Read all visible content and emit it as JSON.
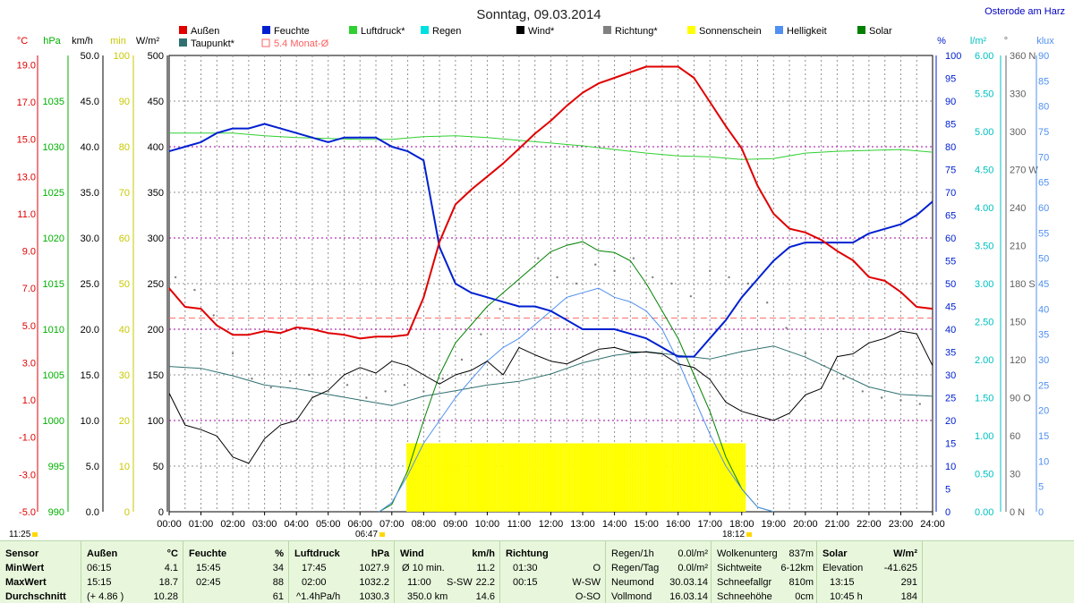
{
  "header": {
    "title": "Sonntag, 09.03.2014",
    "location": "Osterode am Harz"
  },
  "legend": [
    {
      "label": "Außen",
      "color": "#e00000"
    },
    {
      "label": "Feuchte",
      "color": "#0020d0"
    },
    {
      "label": "Luftdruck*",
      "color": "#30d030"
    },
    {
      "label": "Regen",
      "color": "#00e0e0"
    },
    {
      "label": "Wind*",
      "color": "#000000"
    },
    {
      "label": "Richtung*",
      "color": "#808080"
    },
    {
      "label": "Sonnenschein",
      "color": "#ffff00"
    },
    {
      "label": "Helligkeit",
      "color": "#5090f0"
    },
    {
      "label": "Solar",
      "color": "#008000"
    },
    {
      "label": "Taupunkt*",
      "color": "#307070"
    },
    {
      "label": "5.4 Monat-Ø",
      "color": "#ff6060"
    }
  ],
  "axes": {
    "temp": {
      "unit": "°C",
      "ticks": [
        "19.0",
        "17.0",
        "15.0",
        "13.0",
        "11.0",
        "9.0",
        "7.0",
        "5.0",
        "3.0",
        "1.0",
        "-1.0",
        "-3.0",
        "-5.0"
      ],
      "color": "#e00000"
    },
    "pressure": {
      "unit": "hPa",
      "ticks": [
        "1035",
        "1030",
        "1025",
        "1020",
        "1015",
        "1010",
        "1005",
        "1000",
        "995",
        "990"
      ],
      "color": "#00b000"
    },
    "wind": {
      "unit": "km/h",
      "ticks": [
        "50.0",
        "45.0",
        "40.0",
        "35.0",
        "30.0",
        "25.0",
        "20.0",
        "15.0",
        "10.0",
        "5.0",
        "0.0"
      ],
      "color": "#000000"
    },
    "sun_min": {
      "unit": "min",
      "ticks": [
        "100",
        "90",
        "80",
        "70",
        "60",
        "50",
        "40",
        "30",
        "20",
        "10",
        "0"
      ],
      "color": "#c8c800"
    },
    "solar": {
      "unit": "W/m²",
      "ticks": [
        "500",
        "450",
        "400",
        "350",
        "300",
        "250",
        "200",
        "150",
        "100",
        "50",
        "0"
      ],
      "color": "#000000"
    },
    "humidity": {
      "unit": "%",
      "ticks": [
        "100",
        "95",
        "90",
        "85",
        "80",
        "75",
        "70",
        "65",
        "60",
        "55",
        "50",
        "45",
        "40",
        "35",
        "30",
        "25",
        "20",
        "15",
        "10",
        "5",
        "0"
      ],
      "color": "#0020d0"
    },
    "rain": {
      "unit": "l/m²",
      "ticks": [
        "6.00",
        "5.50",
        "5.00",
        "4.50",
        "4.00",
        "3.50",
        "3.00",
        "2.50",
        "2.00",
        "1.50",
        "1.00",
        "0.50",
        "0.00"
      ],
      "color": "#00c0c0"
    },
    "direction": {
      "unit": "°",
      "ticks": [
        "360 N",
        "330",
        "300",
        "270 W",
        "240",
        "210",
        "180 S",
        "150",
        "120",
        "90 O",
        "60",
        "30",
        "0 N"
      ],
      "color": "#606060"
    },
    "lux": {
      "unit": "klux",
      "ticks": [
        "90",
        "85",
        "80",
        "75",
        "70",
        "65",
        "60",
        "55",
        "50",
        "45",
        "40",
        "35",
        "30",
        "25",
        "20",
        "15",
        "10",
        "5",
        "0"
      ],
      "color": "#5090f0"
    },
    "time_ticks": [
      "00:00",
      "01:00",
      "02:00",
      "03:00",
      "04:00",
      "05:00",
      "06:00",
      "07:00",
      "08:00",
      "09:00",
      "10:00",
      "11:00",
      "12:00",
      "13:00",
      "14:00",
      "15:00",
      "16:00",
      "17:00",
      "18:00",
      "19:00",
      "20:00",
      "21:00",
      "22:00",
      "23:00",
      "24:00"
    ]
  },
  "sun_marks": {
    "left": "11:25",
    "sunrise": "06:47",
    "sunset": "18:12"
  },
  "chart_data": {
    "type": "line",
    "title": "Sonntag, 09.03.2014",
    "x_unit": "hours",
    "xlim": [
      0,
      24
    ],
    "monthly_avg_temp": 5.4,
    "series": [
      {
        "name": "Außen",
        "unit": "°C",
        "color": "#e00000",
        "x": [
          0,
          0.5,
          1,
          1.5,
          2,
          2.5,
          3,
          3.5,
          4,
          4.5,
          5,
          5.5,
          6,
          6.5,
          7,
          7.5,
          8,
          8.5,
          9,
          9.5,
          10,
          10.5,
          11,
          11.5,
          12,
          12.5,
          13,
          13.5,
          14,
          14.5,
          15,
          15.5,
          16,
          16.5,
          17,
          17.5,
          18,
          18.5,
          19,
          19.5,
          20,
          20.5,
          21,
          21.5,
          22,
          22.5,
          23,
          23.5,
          24
        ],
        "y": [
          7.0,
          6.0,
          5.9,
          5.0,
          4.5,
          4.5,
          4.7,
          4.6,
          4.9,
          4.8,
          4.6,
          4.5,
          4.3,
          4.4,
          4.4,
          4.5,
          6.5,
          9.5,
          11.5,
          12.3,
          13.0,
          13.7,
          14.5,
          15.3,
          16.0,
          16.8,
          17.5,
          18.0,
          18.3,
          18.6,
          18.9,
          18.9,
          18.9,
          18.3,
          17.0,
          15.7,
          14.5,
          12.5,
          11.0,
          10.2,
          10.0,
          9.6,
          9.0,
          8.5,
          7.6,
          7.4,
          6.8,
          6.0,
          5.9
        ]
      },
      {
        "name": "Feuchte",
        "unit": "%",
        "color": "#0020d0",
        "x": [
          0,
          0.5,
          1,
          1.5,
          2,
          2.5,
          3,
          3.5,
          4,
          4.5,
          5,
          5.5,
          6,
          6.5,
          7,
          7.5,
          8,
          8.5,
          9,
          9.5,
          10,
          10.5,
          11,
          11.5,
          12,
          12.5,
          13,
          13.5,
          14,
          14.5,
          15,
          15.5,
          16,
          16.5,
          17,
          17.5,
          18,
          18.5,
          19,
          19.5,
          20,
          20.5,
          21,
          21.5,
          22,
          22.5,
          23,
          23.5,
          24
        ],
        "y": [
          79,
          80,
          81,
          83,
          84,
          84,
          85,
          84,
          83,
          82,
          81,
          82,
          82,
          82,
          80,
          79,
          77,
          58,
          50,
          48,
          47,
          46,
          45,
          45,
          44,
          42,
          40,
          40,
          40,
          39,
          38,
          36,
          34,
          34,
          38,
          42,
          47,
          51,
          55,
          58,
          59,
          59,
          59,
          59,
          61,
          62,
          63,
          65,
          68
        ]
      },
      {
        "name": "Luftdruck*",
        "unit": "hPa",
        "color": "#30d030",
        "x": [
          0,
          1,
          2,
          3,
          4,
          5,
          6,
          7,
          8,
          9,
          10,
          11,
          12,
          13,
          14,
          15,
          16,
          17,
          18,
          19,
          20,
          21,
          22,
          23,
          24
        ],
        "y": [
          1031.5,
          1031.5,
          1031.5,
          1031.2,
          1031.0,
          1030.9,
          1030.8,
          1030.8,
          1031.1,
          1031.2,
          1031.0,
          1030.7,
          1030.4,
          1030.1,
          1029.7,
          1029.3,
          1029.0,
          1028.9,
          1028.6,
          1028.7,
          1029.3,
          1029.5,
          1029.6,
          1029.7,
          1029.4
        ]
      },
      {
        "name": "Wind*",
        "unit": "km/h",
        "color": "#000000",
        "x": [
          0,
          0.5,
          1,
          1.5,
          2,
          2.5,
          3,
          3.5,
          4,
          4.5,
          5,
          5.5,
          6,
          6.5,
          7,
          7.5,
          8,
          8.5,
          9,
          9.5,
          10,
          10.5,
          11,
          11.5,
          12,
          12.5,
          13,
          13.5,
          14,
          14.5,
          15,
          15.5,
          16,
          16.5,
          17,
          17.5,
          18,
          18.5,
          19,
          19.5,
          20,
          20.5,
          21,
          21.5,
          22,
          22.5,
          23,
          23.5,
          24
        ],
        "y": [
          13.0,
          9.5,
          9.0,
          8.3,
          6.0,
          5.3,
          8.0,
          9.5,
          10.0,
          12.5,
          13.3,
          15.0,
          15.8,
          15.2,
          16.5,
          16.0,
          15.0,
          14.0,
          15.0,
          15.5,
          16.5,
          15.0,
          18.0,
          17.2,
          16.5,
          16.2,
          17.0,
          17.8,
          18.0,
          17.5,
          17.5,
          17.3,
          16.2,
          15.8,
          14.5,
          12.0,
          11.0,
          10.5,
          10.0,
          10.8,
          12.8,
          13.5,
          17.0,
          17.3,
          18.5,
          19.0,
          19.8,
          19.5,
          16.0
        ]
      },
      {
        "name": "Taupunkt*",
        "unit": "°C",
        "color": "#307070",
        "x": [
          0,
          1,
          2,
          3,
          4,
          5,
          6,
          7,
          8,
          9,
          10,
          11,
          12,
          13,
          14,
          15,
          16,
          17,
          18,
          19,
          20,
          21,
          22,
          23,
          24
        ],
        "y": [
          2.8,
          2.7,
          2.3,
          1.8,
          1.6,
          1.3,
          1.0,
          0.7,
          1.2,
          1.5,
          1.8,
          2.0,
          2.4,
          3.0,
          3.4,
          3.6,
          3.4,
          3.2,
          3.6,
          3.9,
          3.3,
          2.5,
          1.7,
          1.3,
          1.2
        ]
      },
      {
        "name": "Richtung*",
        "unit": "°",
        "color": "#808080",
        "x": [
          0.2,
          0.8,
          1.4,
          2.0,
          2.6,
          3.2,
          3.8,
          4.4,
          5.0,
          5.6,
          6.2,
          6.8,
          7.4,
          8.0,
          8.6,
          9.2,
          9.8,
          10.4,
          11.0,
          11.6,
          12.2,
          12.8,
          13.4,
          14.0,
          14.6,
          15.2,
          15.8,
          16.4,
          17.0,
          17.6,
          18.2,
          18.8,
          19.4,
          20.0,
          20.6,
          21.2,
          21.8,
          22.4,
          23.0,
          23.6
        ],
        "y": [
          185,
          175,
          155,
          125,
          105,
          98,
          103,
          108,
          95,
          100,
          90,
          95,
          100,
          95,
          105,
          120,
          140,
          160,
          180,
          200,
          185,
          180,
          195,
          190,
          200,
          185,
          180,
          170,
          190,
          185,
          180,
          165,
          145,
          125,
          115,
          105,
          95,
          90,
          88,
          85
        ]
      },
      {
        "name": "Solar",
        "unit": "W/m²",
        "color": "#008000",
        "x": [
          6.6,
          7,
          7.5,
          8,
          8.5,
          9,
          9.5,
          10,
          10.5,
          11,
          11.5,
          12,
          12.5,
          13,
          13.5,
          14,
          14.5,
          15,
          15.5,
          16,
          16.5,
          17,
          17.5,
          18,
          18.5,
          19
        ],
        "y": [
          0,
          8,
          45,
          100,
          150,
          185,
          205,
          225,
          240,
          255,
          270,
          285,
          292,
          296,
          286,
          284,
          275,
          250,
          220,
          190,
          150,
          110,
          60,
          25,
          5,
          0
        ]
      },
      {
        "name": "Helligkeit",
        "unit": "klux",
        "color": "#5090f0",
        "x": [
          6.6,
          7,
          7.5,
          8,
          8.5,
          9,
          9.5,
          10,
          10.5,
          11,
          11.5,
          12,
          12.5,
          13,
          13.5,
          14,
          14.5,
          15,
          15.5,
          16,
          16.5,
          17,
          17.5,
          18,
          18.5,
          19
        ],
        "y": [
          0,
          2,
          8,
          15,
          20,
          25,
          29,
          33,
          36,
          38,
          41,
          44,
          47,
          48,
          49,
          47,
          46,
          44,
          40,
          33,
          25,
          17,
          10,
          5,
          1,
          0
        ]
      },
      {
        "name": "Sonnenschein",
        "unit": "min",
        "color": "#ffff00",
        "x_start": 7.5,
        "x_end": 18.1,
        "value": 15
      }
    ]
  },
  "stats": {
    "row_labels": [
      "Sensor",
      "MinWert",
      "MaxWert",
      "Durchschnitt"
    ],
    "aussen": {
      "head": "Außen",
      "unit": "°C",
      "rows": [
        [
          "06:15",
          "4.1"
        ],
        [
          "15:15",
          "18.7"
        ],
        [
          "(+ 4.86 )",
          "10.28"
        ]
      ]
    },
    "feuchte": {
      "head": "Feuchte",
      "unit": "%",
      "rows": [
        [
          "15:45",
          "34"
        ],
        [
          "02:45",
          "88"
        ],
        [
          "",
          "61"
        ]
      ]
    },
    "luftdruck": {
      "head": "Luftdruck",
      "unit": "hPa",
      "rows": [
        [
          "17:45",
          "1027.9"
        ],
        [
          "02:00",
          "1032.2"
        ],
        [
          "^1.4hPa/h",
          "1030.3"
        ]
      ]
    },
    "wind": {
      "head": "Wind",
      "unit": "km/h",
      "rows": [
        [
          "Ø 10 min.",
          "",
          "11.2"
        ],
        [
          "11:00",
          "S-SW",
          "22.2"
        ],
        [
          "350.0 km",
          "",
          "14.6"
        ]
      ]
    },
    "richtung": {
      "head": "Richtung",
      "unit": "",
      "rows": [
        [
          "01:30",
          "O"
        ],
        [
          "00:15",
          "W-SW"
        ],
        [
          "",
          "O-SO"
        ]
      ]
    },
    "regen": {
      "rows": [
        [
          "Regen/1h",
          "0.0l/m²"
        ],
        [
          "Regen/Tag",
          "0.0l/m²"
        ],
        [
          "Neumond",
          "30.03.14"
        ],
        [
          "Vollmond",
          "16.03.14"
        ]
      ]
    },
    "wolken": {
      "rows": [
        [
          "Wolkenunterg",
          "837m"
        ],
        [
          "Sichtweite",
          "6-12km"
        ],
        [
          "Schneefallgr",
          "810m"
        ],
        [
          "Schneehöhe",
          "0cm"
        ]
      ]
    },
    "solar": {
      "head": "Solar",
      "unit": "W/m²",
      "rows": [
        [
          "Elevation",
          "-41.625"
        ],
        [
          "13:15",
          "291"
        ],
        [
          "10:45 h",
          "184"
        ]
      ]
    }
  }
}
